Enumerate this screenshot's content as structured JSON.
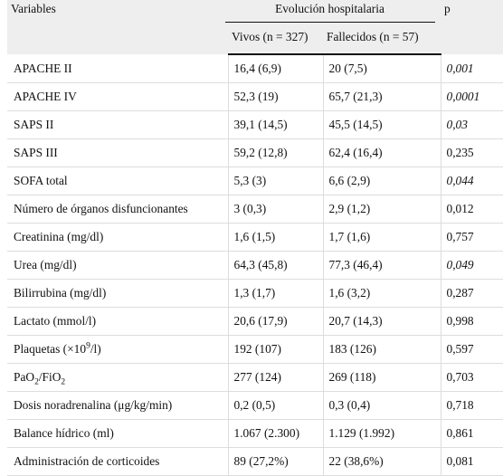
{
  "header": {
    "variables": "Variables",
    "group": "Evolución hospitalaria",
    "p": "p",
    "alive": "Vivos (n = 327)",
    "deceased": "Fallecidos (n = 57)"
  },
  "rows": [
    {
      "label": "APACHE II",
      "alive": "16,4 (6,9)",
      "deceased": "20 (7,5)",
      "p": "0,001",
      "p_italic": true
    },
    {
      "label": "APACHE IV",
      "alive": "52,3 (19)",
      "deceased": "65,7 (21,3)",
      "p": "0,0001",
      "p_italic": true
    },
    {
      "label": "SAPS II",
      "alive": "39,1 (14,5)",
      "deceased": "45,5 (14,5)",
      "p": "0,03",
      "p_italic": true
    },
    {
      "label": "SAPS III",
      "alive": "59,2 (12,8)",
      "deceased": "62,4 (16,4)",
      "p": "0,235",
      "p_italic": false
    },
    {
      "label": "SOFA total",
      "alive": "5,3 (3)",
      "deceased": "6,6 (2,9)",
      "p": "0,044",
      "p_italic": true
    },
    {
      "label": "Número de órganos disfuncionantes",
      "alive": "3 (0,3)",
      "deceased": "2,9 (1,2)",
      "p": "0,012",
      "p_italic": false
    },
    {
      "label": "Creatinina (mg/dl)",
      "alive": "1,6 (1,5)",
      "deceased": "1,7 (1,6)",
      "p": "0,757",
      "p_italic": false
    },
    {
      "label": "Urea (mg/dl)",
      "alive": "64,3 (45,8)",
      "deceased": "77,3 (46,4)",
      "p": "0,049",
      "p_italic": true
    },
    {
      "label": "Bilirrubina (mg/dl)",
      "alive": "1,3 (1,7)",
      "deceased": "1,6 (3,2)",
      "p": "0,287",
      "p_italic": false
    },
    {
      "label": "Lactato (mmol/l)",
      "alive": "20,6 (17,9)",
      "deceased": "20,7 (14,3)",
      "p": "0,998",
      "p_italic": false
    },
    {
      "label_parts": [
        "Plaquetas (×10",
        "9",
        "/l)"
      ],
      "label_format": "sup",
      "alive": "192 (107)",
      "deceased": "183 (126)",
      "p": "0,597",
      "p_italic": false
    },
    {
      "label_parts": [
        "PaO",
        "2",
        "/FiO",
        "2"
      ],
      "label_format": "sub",
      "alive": "277 (124)",
      "deceased": "269 (118)",
      "p": "0,703",
      "p_italic": false
    },
    {
      "label": "Dosis noradrenalina (μg/kg/min)",
      "alive": "0,2 (0,5)",
      "deceased": "0,3 (0,4)",
      "p": "0,718",
      "p_italic": false
    },
    {
      "label": "Balance hídrico (ml)",
      "alive": "1.067 (2.300)",
      "deceased": "1.129 (1.992)",
      "p": "0,861",
      "p_italic": false
    },
    {
      "label": "Administración de corticoides",
      "alive": "89 (27,2%)",
      "deceased": "22 (38,6%)",
      "p": "0,081",
      "p_italic": false
    }
  ]
}
